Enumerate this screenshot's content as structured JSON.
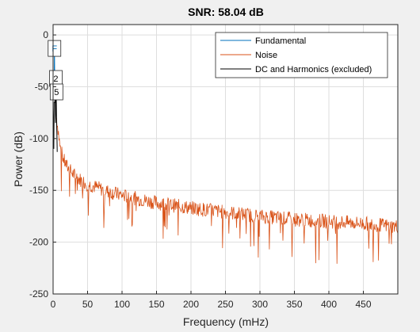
{
  "chart_data": {
    "type": "line",
    "title": "SNR:  58.04 dB",
    "xlabel": "Frequency (mHz)",
    "ylabel": "Power (dB)",
    "xlim": [
      0,
      500
    ],
    "ylim": [
      -250,
      10
    ],
    "xticks": [
      0,
      50,
      100,
      150,
      200,
      250,
      300,
      350,
      400,
      450
    ],
    "yticks": [
      0,
      -50,
      -100,
      -150,
      -200,
      -250
    ],
    "xtick_labels": [
      "0",
      "50",
      "100",
      "150",
      "200",
      "250",
      "300",
      "350",
      "400",
      "450"
    ],
    "ytick_labels": [
      "0",
      "-50",
      "-100",
      "-150",
      "-200",
      "-250"
    ],
    "grid": true,
    "legend_position": "top-right",
    "series": [
      {
        "name": "Fundamental",
        "color": "#0072bd",
        "x": [
          1.5,
          2.0,
          2.5
        ],
        "y": [
          -60,
          -10,
          -60
        ]
      },
      {
        "name": "Noise",
        "color": "#d95319",
        "x": [
          5,
          8,
          10,
          15,
          20,
          30,
          40,
          50,
          75,
          100,
          150,
          200,
          250,
          300,
          350,
          400,
          450,
          500
        ],
        "y": [
          -80,
          -95,
          -108,
          -120,
          -127,
          -135,
          -140,
          -144,
          -150,
          -155,
          -162,
          -167,
          -171,
          -175,
          -178,
          -180,
          -182,
          -185
        ]
      },
      {
        "name": "DC and Harmonics (excluded)",
        "color": "#000000",
        "x": [
          0,
          0.5,
          1.0,
          1.5,
          2.5,
          3.0,
          3.5,
          4.0,
          4.5,
          5.0,
          5.5,
          6.0
        ],
        "y": [
          -70,
          -90,
          -110,
          -65,
          -65,
          -50,
          -85,
          -70,
          -55,
          -80,
          -95,
          -113
        ]
      }
    ],
    "annotations": [
      {
        "label": "F",
        "x": 2,
        "y": -13,
        "color": "#0072bd"
      },
      {
        "label": "2",
        "x": 4,
        "y": -42,
        "color": "#000000"
      },
      {
        "label": "5",
        "x": 5,
        "y": -55,
        "color": "#000000"
      }
    ]
  }
}
